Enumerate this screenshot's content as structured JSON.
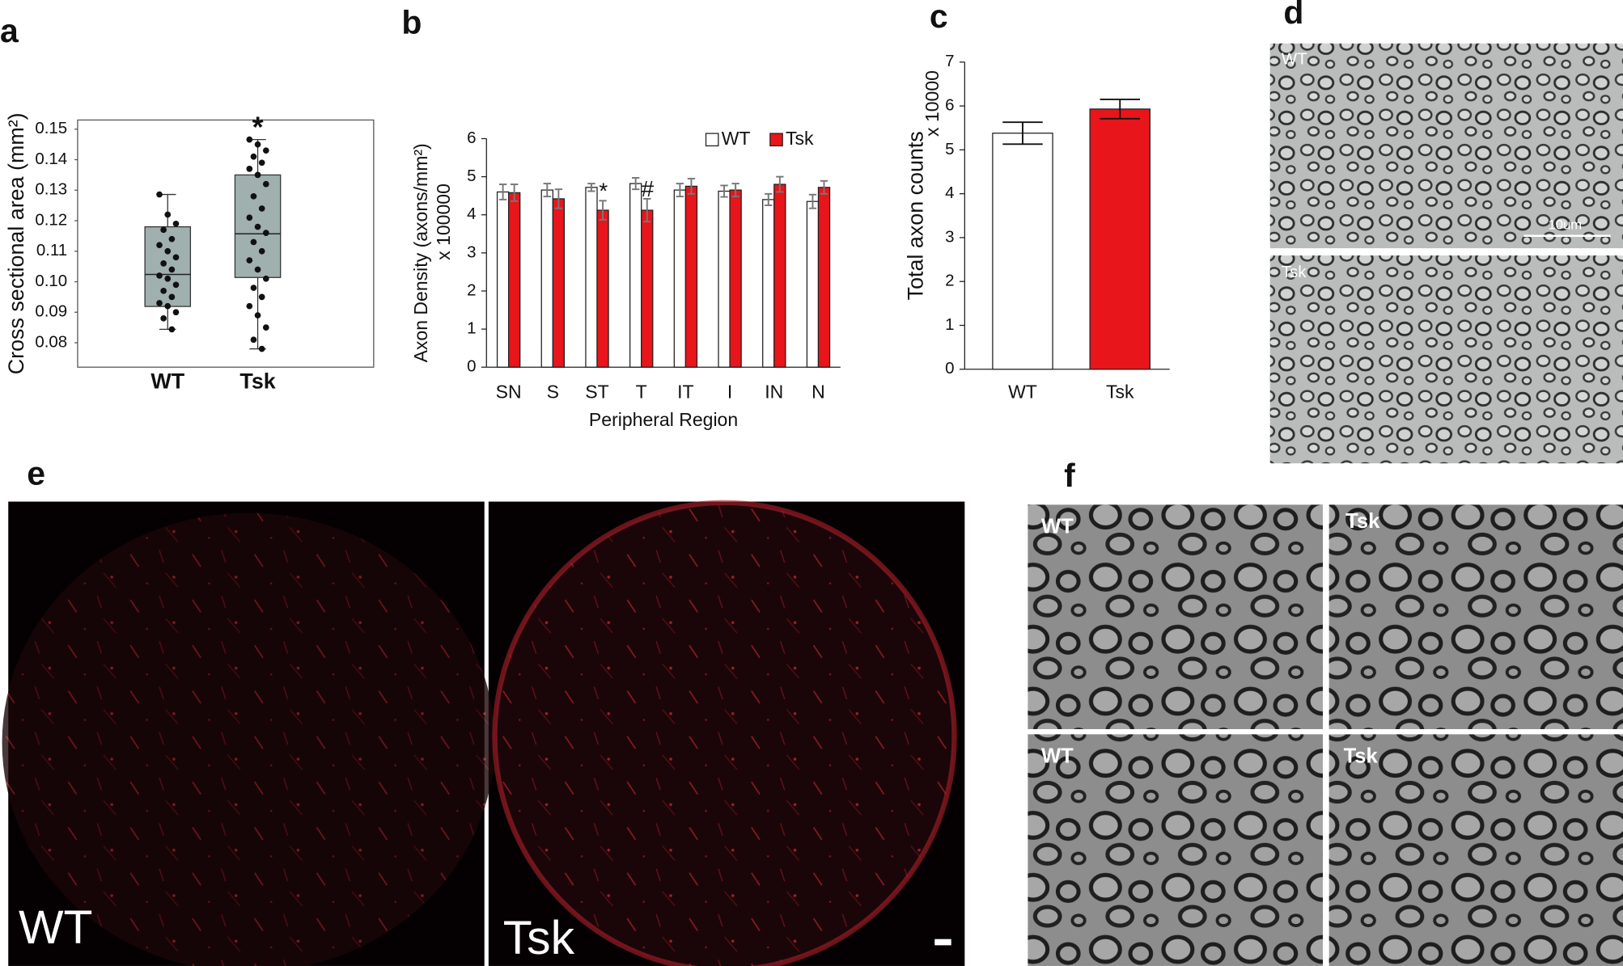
{
  "panels": [
    "a",
    "b",
    "c",
    "d",
    "e",
    "f"
  ],
  "chart_data": [
    {
      "type": "box",
      "ylabel": "Cross sectional area (mm²)",
      "categories": [
        "WT",
        "Tsk"
      ],
      "color": "#9fb0ae",
      "ylim": [
        0.072,
        0.153
      ],
      "yticks": [
        0.08,
        0.09,
        {
          "value": 0.1,
          "label": "0.10"
        },
        0.11,
        0.12,
        0.13,
        0.14,
        0.15
      ],
      "boxes": [
        {
          "min": 0.0844,
          "q1": 0.0919,
          "median": 0.1024,
          "q3": 0.118,
          "max": 0.1286,
          "points": [
            0.1286,
            0.122,
            0.119,
            0.117,
            0.114,
            0.112,
            0.11,
            0.108,
            0.106,
            0.104,
            0.102,
            0.101,
            0.099,
            0.097,
            0.095,
            0.093,
            0.092,
            0.09,
            0.088,
            0.0844
          ]
        },
        {
          "min": 0.078,
          "q1": 0.1014,
          "median": 0.1157,
          "q3": 0.135,
          "max": 0.1466,
          "points": [
            0.1466,
            0.145,
            0.143,
            0.141,
            0.139,
            0.137,
            0.135,
            0.132,
            0.128,
            0.124,
            0.121,
            0.118,
            0.116,
            0.113,
            0.11,
            0.107,
            0.104,
            0.101,
            0.098,
            0.095,
            0.092,
            0.089,
            0.085,
            0.081,
            0.078
          ]
        }
      ],
      "annotations": [
        {
          "text": "*",
          "category": "Tsk"
        }
      ]
    },
    {
      "type": "bar",
      "ylabel": "Axon Density (axons/mm²)",
      "yunit": "x 100000",
      "xlabel": "Peripheral Region",
      "categories": [
        "SN",
        "S",
        "ST",
        "T",
        "IT",
        "I",
        "IN",
        "N"
      ],
      "ylim": [
        0,
        6
      ],
      "yticks": [
        0,
        1,
        2,
        3,
        4,
        5,
        6
      ],
      "legend": "top-right",
      "series": [
        {
          "name": "WT",
          "color": "#ffffff",
          "values": [
            4.6,
            4.65,
            4.72,
            4.82,
            4.65,
            4.62,
            4.4,
            4.35
          ],
          "errors": [
            0.2,
            0.17,
            0.1,
            0.15,
            0.17,
            0.15,
            0.15,
            0.18
          ]
        },
        {
          "name": "Tsk",
          "color": "#e8151b",
          "values": [
            4.58,
            4.42,
            4.12,
            4.12,
            4.75,
            4.65,
            4.8,
            4.72
          ],
          "errors": [
            0.22,
            0.25,
            0.25,
            0.3,
            0.2,
            0.17,
            0.2,
            0.17
          ]
        }
      ],
      "annotations": [
        {
          "text": "*",
          "category": "ST"
        },
        {
          "text": "#",
          "category": "T"
        }
      ]
    },
    {
      "type": "bar",
      "ylabel": "Total axon counts",
      "yunit": "x 10000",
      "categories": [
        "WT",
        "Tsk"
      ],
      "ylim": [
        0,
        7
      ],
      "yticks": [
        0,
        1,
        2,
        3,
        4,
        5,
        6,
        7
      ],
      "colors": [
        "#ffffff",
        "#e8151b"
      ],
      "values": [
        5.38,
        5.93
      ],
      "errors": [
        0.25,
        0.22
      ]
    }
  ],
  "images": {
    "d": {
      "labels": [
        "WT",
        "Tsk"
      ],
      "scale": "10um"
    },
    "e": {
      "labels": [
        "WT",
        "Tsk"
      ]
    },
    "f": {
      "labels": [
        "WT",
        "Tsk",
        "WT",
        "Tsk"
      ]
    }
  }
}
